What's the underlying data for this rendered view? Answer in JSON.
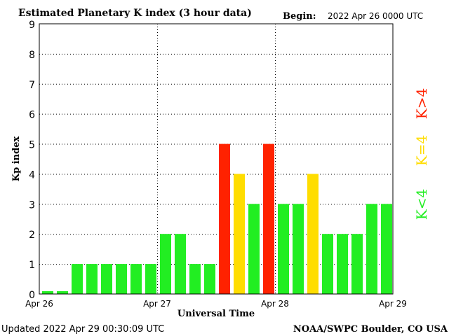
{
  "header": {
    "title": "Estimated Planetary K index (3 hour data)",
    "begin_label": "Begin:",
    "begin_value": "2022 Apr 26 0000 UTC"
  },
  "footer": {
    "updated": "Updated 2022 Apr 29 00:30:09 UTC",
    "source": "NOAA/SWPC Boulder, CO USA"
  },
  "legend": {
    "less": "K<4",
    "equal": "K=4",
    "greater": "K>4"
  },
  "colors": {
    "below": "#22ee22",
    "equal": "#ffdd00",
    "above": "#ff2200",
    "grid": "#000000"
  },
  "chart_data": {
    "type": "bar",
    "title": "Estimated Planetary K index (3 hour data)",
    "xlabel": "Universal Time",
    "ylabel": "Kp index",
    "ylim": [
      0,
      9
    ],
    "yticks": [
      0,
      1,
      2,
      3,
      4,
      5,
      6,
      7,
      8,
      9
    ],
    "xticks": [
      "Apr 26",
      "Apr 27",
      "Apr 28",
      "Apr 29"
    ],
    "bars_per_day": 8,
    "values": [
      0,
      0,
      1,
      1,
      1,
      1,
      1,
      1,
      2,
      2,
      1,
      1,
      5,
      4,
      3,
      5,
      3,
      3,
      4,
      2,
      2,
      2,
      3,
      3
    ],
    "grid": "dotted"
  }
}
